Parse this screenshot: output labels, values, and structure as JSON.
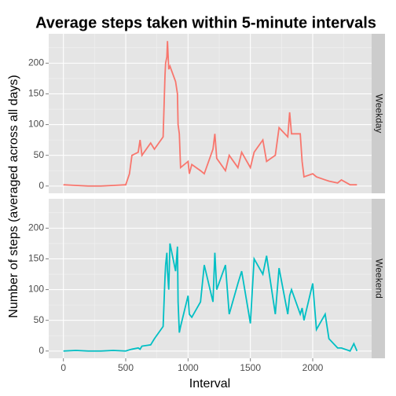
{
  "chart_data": {
    "type": "line",
    "title": "Average steps taken within 5-minute intervals",
    "x_label": "Interval",
    "y_label": "Number of steps (averaged across all days)",
    "x": [
      0,
      100,
      200,
      300,
      400,
      500,
      530,
      550,
      600,
      615,
      630,
      700,
      730,
      800,
      815,
      820,
      830,
      835,
      845,
      855,
      900,
      915,
      920,
      930,
      940,
      1000,
      1010,
      1030,
      1100,
      1130,
      1200,
      1215,
      1230,
      1300,
      1330,
      1400,
      1430,
      1500,
      1530,
      1600,
      1630,
      1700,
      1730,
      1800,
      1815,
      1830,
      1900,
      1915,
      1930,
      2000,
      2030,
      2100,
      2130,
      2200,
      2230,
      2300,
      2330,
      2355
    ],
    "series": [
      {
        "name": "Weekday",
        "color": "#F8766D",
        "values": [
          2,
          1,
          0,
          0,
          1,
          2,
          20,
          50,
          55,
          75,
          50,
          70,
          60,
          80,
          180,
          200,
          210,
          236,
          190,
          195,
          170,
          150,
          100,
          85,
          30,
          40,
          20,
          35,
          25,
          20,
          60,
          85,
          45,
          25,
          50,
          30,
          55,
          30,
          55,
          75,
          40,
          50,
          95,
          80,
          120,
          85,
          85,
          40,
          15,
          20,
          15,
          10,
          8,
          5,
          10,
          2,
          2,
          2
        ]
      },
      {
        "name": "Weekend",
        "color": "#00BFC4",
        "values": [
          0,
          1,
          0,
          0,
          1,
          0,
          2,
          3,
          5,
          3,
          8,
          10,
          20,
          40,
          120,
          140,
          160,
          130,
          100,
          175,
          130,
          170,
          80,
          30,
          40,
          90,
          60,
          55,
          80,
          140,
          80,
          160,
          100,
          140,
          60,
          110,
          130,
          45,
          150,
          125,
          155,
          60,
          135,
          60,
          90,
          100,
          60,
          70,
          50,
          110,
          35,
          60,
          20,
          5,
          5,
          0,
          12,
          0
        ]
      }
    ],
    "xlim": [
      -117.75,
      2472.75
    ],
    "xticks": [
      0,
      500,
      1000,
      1500,
      2000
    ],
    "ylim": [
      -11.8,
      247.8
    ],
    "yticks": [
      0,
      50,
      100,
      150,
      200
    ],
    "grid": true
  }
}
